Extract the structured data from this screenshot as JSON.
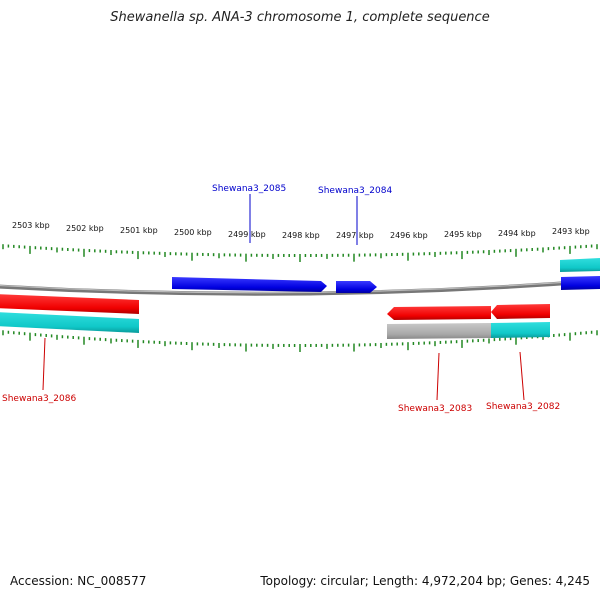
{
  "title": "Shewanella sp. ANA-3 chromosome 1, complete sequence",
  "accession_text": "Accession: NC_008577",
  "summary_text": "Topology: circular; Length: 4,972,204 bp; Genes: 4,245",
  "colors": {
    "forward_gene": "#1010e0",
    "reverse_gene": "#f00000",
    "cds_feature": "#10c8c8",
    "other_feature": "#a8a8a8",
    "backbone": "#888888",
    "tick": "#228822",
    "forward_label": "#0000cc",
    "reverse_label": "#cc0000"
  },
  "scale_ticks": [
    {
      "label": "2503 kbp"
    },
    {
      "label": "2502 kbp"
    },
    {
      "label": "2501 kbp"
    },
    {
      "label": "2500 kbp"
    },
    {
      "label": "2499 kbp"
    },
    {
      "label": "2498 kbp"
    },
    {
      "label": "2497 kbp"
    },
    {
      "label": "2496 kbp"
    },
    {
      "label": "2495 kbp"
    },
    {
      "label": "2494 kbp"
    },
    {
      "label": "2493 kbp"
    }
  ],
  "genes": [
    {
      "name": "Shewana3_2085",
      "strand": "forward"
    },
    {
      "name": "Shewana3_2084",
      "strand": "forward"
    },
    {
      "name": "Shewana3_2086",
      "strand": "reverse"
    },
    {
      "name": "Shewana3_2083",
      "strand": "reverse"
    },
    {
      "name": "Shewana3_2082",
      "strand": "reverse"
    }
  ]
}
